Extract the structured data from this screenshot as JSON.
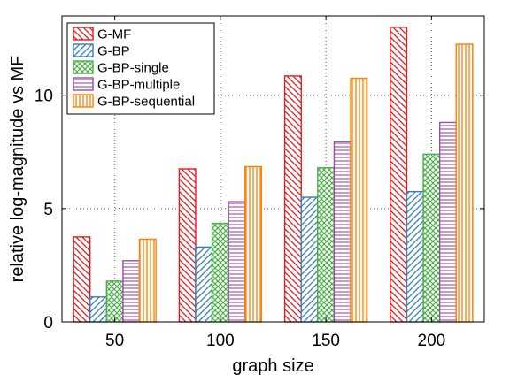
{
  "chart_data": {
    "type": "bar",
    "xlabel": "graph size",
    "ylabel": "relative log-magnitude vs MF",
    "categories": [
      "50",
      "100",
      "150",
      "200"
    ],
    "ylim": [
      0,
      13.5
    ],
    "yticks": [
      0,
      5,
      10
    ],
    "grid": true,
    "legend_position": "top-left",
    "series": [
      {
        "name": "G-MF",
        "color": "#e41a1c",
        "pattern": "diagonal-down",
        "values": [
          3.75,
          6.75,
          10.85,
          13.0
        ]
      },
      {
        "name": "G-BP",
        "color": "#377eb8",
        "pattern": "diagonal-up",
        "values": [
          1.1,
          3.3,
          5.5,
          5.75
        ]
      },
      {
        "name": "G-BP-single",
        "color": "#4daf4a",
        "pattern": "crosshatch",
        "values": [
          1.8,
          4.35,
          6.8,
          7.4
        ]
      },
      {
        "name": "G-BP-multiple",
        "color": "#984ea3",
        "pattern": "horizontal",
        "values": [
          2.7,
          5.3,
          7.95,
          8.8
        ]
      },
      {
        "name": "G-BP-sequential",
        "color": "#ff7f00",
        "pattern": "vertical",
        "values": [
          3.65,
          6.85,
          10.75,
          12.25
        ]
      }
    ]
  }
}
